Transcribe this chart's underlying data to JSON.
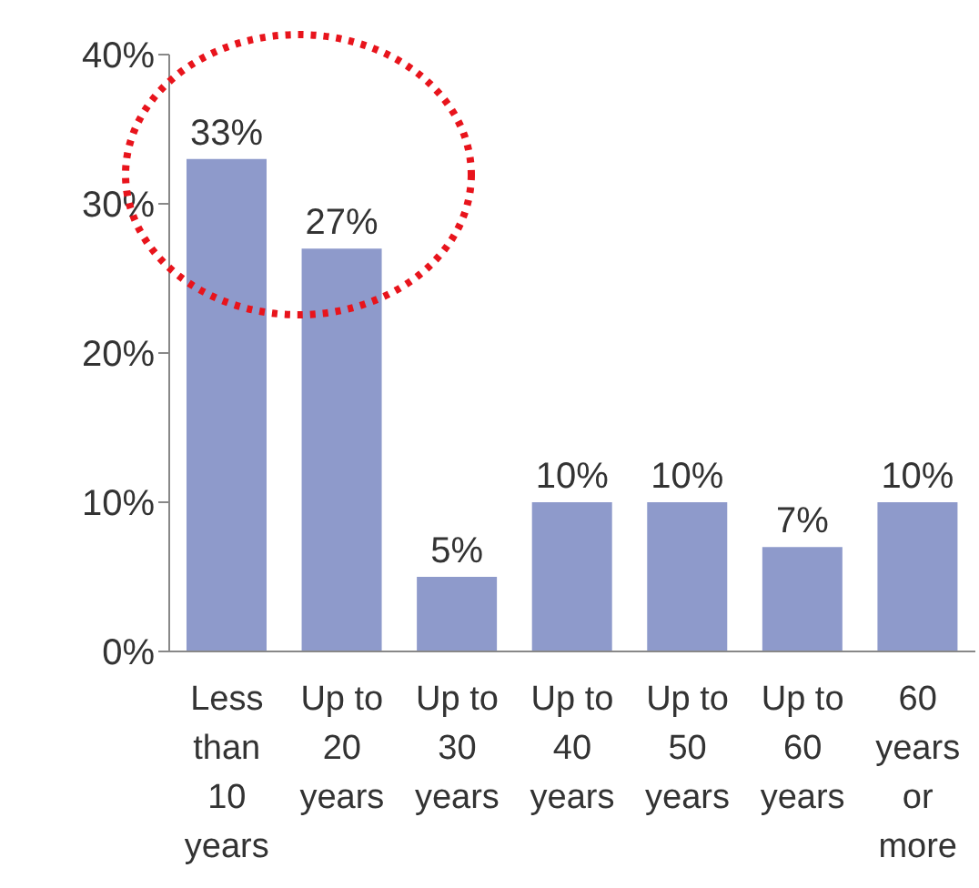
{
  "chart_data": {
    "type": "bar",
    "categories": [
      "Less than 10 years",
      "Up to 20 years",
      "Up to 30 years",
      "Up to 40 years",
      "Up to 50 years",
      "Up to 60 years",
      "60 years or more"
    ],
    "values": [
      33,
      27,
      5,
      10,
      10,
      7,
      10
    ],
    "value_labels": [
      "33%",
      "27%",
      "5%",
      "10%",
      "10%",
      "7%",
      "10%"
    ],
    "color": "#8e9acb",
    "ylim": [
      0,
      40
    ],
    "yticks": [
      {
        "value": 0,
        "label": "0%"
      },
      {
        "value": 10,
        "label": "10%"
      },
      {
        "value": 20,
        "label": "20%"
      },
      {
        "value": 30,
        "label": "30%"
      },
      {
        "value": 40,
        "label": "40%"
      }
    ],
    "grid": false,
    "legend": false
  }
}
